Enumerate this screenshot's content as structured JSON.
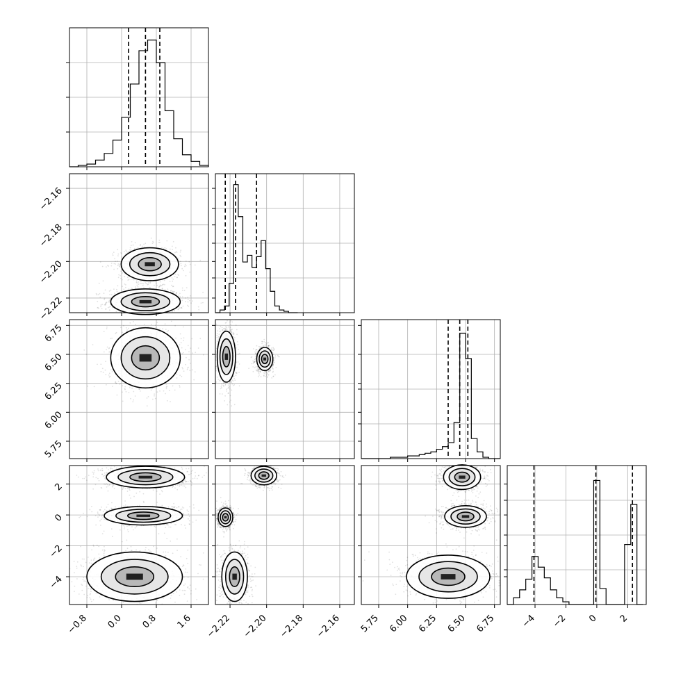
{
  "chart_data": {
    "type": "corner",
    "title": "",
    "grid": true,
    "parameters": [
      {
        "index": 0,
        "range": [
          -1.2,
          2.0
        ],
        "ticks": [
          -0.8,
          0.0,
          0.8,
          1.6
        ],
        "tick_labels": [
          "−0.8",
          "0.0",
          "0.8",
          "1.6"
        ]
      },
      {
        "index": 1,
        "range": [
          -2.228,
          -2.152
        ],
        "ticks": [
          -2.22,
          -2.2,
          -2.18,
          -2.16
        ],
        "tick_labels": [
          "−2.22",
          "−2.20",
          "−2.18",
          "−2.16"
        ]
      },
      {
        "index": 2,
        "range": [
          5.6,
          6.8
        ],
        "ticks": [
          5.75,
          6.0,
          6.25,
          6.5,
          6.75
        ],
        "tick_labels": [
          "5.75",
          "6.00",
          "6.25",
          "6.50",
          "6.75"
        ]
      },
      {
        "index": 3,
        "range": [
          -5.8,
          3.2
        ],
        "ticks": [
          -4,
          -2,
          0,
          2
        ],
        "tick_labels": [
          "−4",
          "−2",
          "0",
          "2"
        ]
      }
    ],
    "histograms": [
      {
        "parameter": 0,
        "bin_edges": [
          -1.2,
          -1.0,
          -0.8,
          -0.6,
          -0.4,
          -0.2,
          0.0,
          0.2,
          0.4,
          0.6,
          0.8,
          1.0,
          1.2,
          1.4,
          1.6,
          1.8,
          2.0
        ],
        "density": [
          0.0,
          0.01,
          0.02,
          0.05,
          0.1,
          0.2,
          0.37,
          0.62,
          0.87,
          0.95,
          0.78,
          0.42,
          0.21,
          0.09,
          0.04,
          0.01
        ],
        "quantiles": [
          0.16,
          0.55,
          0.88
        ]
      },
      {
        "parameter": 1,
        "bin_edges": [
          -2.228,
          -2.2255,
          -2.223,
          -2.2205,
          -2.218,
          -2.2155,
          -2.213,
          -2.2105,
          -2.208,
          -2.2055,
          -2.203,
          -2.2005,
          -2.198,
          -2.1955,
          -2.193,
          -2.1905,
          -2.188,
          -2.1855,
          -2.183
        ],
        "density": [
          0.0,
          0.02,
          0.05,
          0.22,
          0.96,
          0.72,
          0.38,
          0.43,
          0.34,
          0.42,
          0.54,
          0.33,
          0.16,
          0.05,
          0.02,
          0.01,
          0.0,
          0.0
        ],
        "quantiles": [
          -2.2226,
          -2.217,
          -2.2055
        ]
      },
      {
        "parameter": 2,
        "bin_edges": [
          5.6,
          5.65,
          5.7,
          5.75,
          5.8,
          5.85,
          5.9,
          5.95,
          6.0,
          6.05,
          6.1,
          6.15,
          6.2,
          6.25,
          6.3,
          6.35,
          6.4,
          6.45,
          6.5,
          6.55,
          6.6,
          6.65,
          6.7,
          6.75,
          6.8
        ],
        "density": [
          0.0,
          0.0,
          0.0,
          0.0,
          0.0,
          0.01,
          0.01,
          0.01,
          0.02,
          0.02,
          0.03,
          0.04,
          0.05,
          0.07,
          0.09,
          0.12,
          0.27,
          0.94,
          0.75,
          0.15,
          0.05,
          0.01,
          0.0,
          0.0
        ],
        "quantiles": [
          6.35,
          6.45,
          6.52
        ]
      },
      {
        "parameter": 3,
        "bin_edges": [
          -5.8,
          -5.4,
          -5.0,
          -4.6,
          -4.2,
          -3.8,
          -3.4,
          -3.0,
          -2.6,
          -2.2,
          -1.8,
          -1.4,
          -1.0,
          -0.6,
          -0.2,
          0.2,
          0.6,
          1.0,
          1.4,
          1.8,
          2.2,
          2.6,
          3.0
        ],
        "density": [
          0.0,
          0.05,
          0.11,
          0.19,
          0.36,
          0.28,
          0.2,
          0.11,
          0.05,
          0.02,
          0.0,
          0.0,
          0.0,
          0.0,
          0.93,
          0.12,
          0.0,
          0.0,
          0.0,
          0.45,
          0.75,
          0.0
        ],
        "quantiles": [
          -4.07,
          -0.06,
          2.31
        ]
      }
    ],
    "joint_modes": {
      "p1_vs_p0": [
        {
          "center": [
            0.55,
            -2.222
          ],
          "spread": [
            0.4,
            0.0035
          ]
        },
        {
          "center": [
            0.65,
            -2.2015
          ],
          "spread": [
            0.33,
            0.0045
          ]
        }
      ],
      "p2_vs_p0": [
        {
          "center": [
            0.55,
            6.47
          ],
          "spread": [
            0.4,
            0.13
          ]
        }
      ],
      "p2_vs_p1": [
        {
          "center": [
            -2.222,
            6.48
          ],
          "spread": [
            0.0025,
            0.11
          ]
        },
        {
          "center": [
            -2.201,
            6.46
          ],
          "spread": [
            0.0022,
            0.05
          ]
        }
      ],
      "p3_vs_p0": [
        {
          "center": [
            0.55,
            2.45
          ],
          "spread": [
            0.45,
            0.35
          ]
        },
        {
          "center": [
            0.5,
            -0.05
          ],
          "spread": [
            0.45,
            0.3
          ]
        },
        {
          "center": [
            0.3,
            -4.0
          ],
          "spread": [
            0.55,
            0.8
          ]
        }
      ],
      "p3_vs_p1": [
        {
          "center": [
            -2.2015,
            2.55
          ],
          "spread": [
            0.0035,
            0.3
          ]
        },
        {
          "center": [
            -2.2225,
            -0.15
          ],
          "spread": [
            0.002,
            0.3
          ]
        },
        {
          "center": [
            -2.2175,
            -4.0
          ],
          "spread": [
            0.0035,
            0.8
          ]
        }
      ],
      "p3_vs_p2": [
        {
          "center": [
            6.47,
            2.45
          ],
          "spread": [
            0.08,
            0.4
          ]
        },
        {
          "center": [
            6.5,
            -0.1
          ],
          "spread": [
            0.09,
            0.35
          ]
        },
        {
          "center": [
            6.35,
            -4.0
          ],
          "spread": [
            0.18,
            0.7
          ]
        }
      ]
    },
    "colors": {
      "axes": "#000000",
      "grid": "#b0b0b0",
      "points": "#000000"
    }
  }
}
